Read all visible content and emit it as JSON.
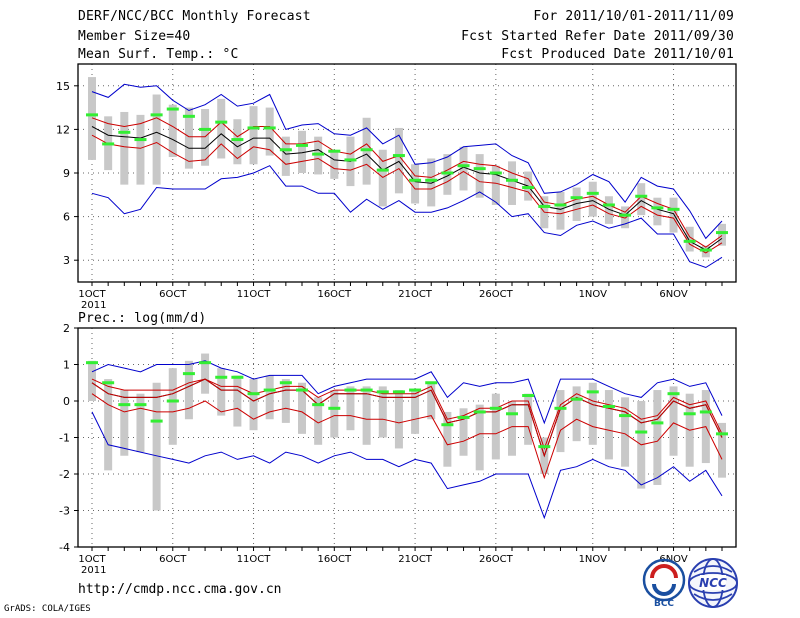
{
  "header": {
    "title": "DERF/NCC/BCC Monthly Forecast",
    "member_size": "Member Size=40",
    "variable": "Mean Surf. Temp.: °C",
    "period": "For 2011/10/01-2011/11/09",
    "started": "Fcst Started Refer Date 2011/09/30",
    "produced": "Fcst Produced Date 2011/10/01"
  },
  "footer": {
    "url": "http://cmdp.ncc.cma.gov.cn",
    "grads": "GrADS: COLA/IGES"
  },
  "logos": {
    "bcc": "BCC",
    "ncc": "NCC"
  },
  "colors": {
    "box": "#c8c8c8",
    "obs": "#33ee33",
    "outer": "#0000cc",
    "inner": "#cc0000",
    "mean": "#000000",
    "grid": "#666666"
  },
  "chart_data": [
    {
      "type": "line",
      "title": "Mean Surf. Temp.: °C",
      "ylim": [
        1.5,
        16.5
      ],
      "yticks": [
        3,
        6,
        9,
        12,
        15
      ],
      "x": [
        1,
        2,
        3,
        4,
        5,
        6,
        7,
        8,
        9,
        10,
        11,
        12,
        13,
        14,
        15,
        16,
        17,
        18,
        19,
        20,
        21,
        22,
        23,
        24,
        25,
        26,
        27,
        28,
        29,
        30,
        31,
        32,
        33,
        34,
        35,
        36,
        37,
        38,
        39,
        40
      ],
      "xticks": [
        {
          "x": 1,
          "label": "1OCT"
        },
        {
          "x": 6,
          "label": "6OCT"
        },
        {
          "x": 11,
          "label": "11OCT"
        },
        {
          "x": 16,
          "label": "16OCT"
        },
        {
          "x": 21,
          "label": "21OCT"
        },
        {
          "x": 26,
          "label": "26OCT"
        },
        {
          "x": 32,
          "label": "1NOV"
        },
        {
          "x": 37,
          "label": "6NOV"
        }
      ],
      "year_label": "2011",
      "series": [
        {
          "name": "max",
          "color": "#0000cc",
          "values": [
            14.6,
            14.2,
            15.1,
            14.9,
            15.0,
            14.0,
            13.3,
            13.7,
            14.4,
            13.6,
            13.8,
            14.4,
            12.0,
            12.3,
            12.4,
            11.7,
            11.6,
            12.1,
            11.0,
            11.6,
            9.6,
            9.7,
            10.1,
            10.8,
            10.9,
            11.0,
            10.2,
            9.7,
            7.6,
            7.7,
            8.2,
            8.9,
            8.4,
            7.0,
            8.7,
            8.1,
            7.9,
            6.4,
            4.5,
            5.7
          ]
        },
        {
          "name": "p75",
          "color": "#cc0000",
          "values": [
            12.8,
            12.4,
            12.2,
            12.4,
            12.8,
            12.2,
            11.5,
            11.5,
            12.5,
            11.5,
            12.2,
            12.2,
            11.0,
            11.0,
            11.2,
            10.5,
            10.3,
            11.0,
            9.8,
            10.2,
            8.8,
            8.7,
            9.2,
            9.8,
            9.6,
            9.5,
            9.0,
            8.6,
            7.0,
            6.8,
            7.2,
            7.4,
            6.8,
            6.3,
            7.4,
            6.9,
            6.5,
            4.6,
            3.9,
            4.7
          ]
        },
        {
          "name": "mean",
          "color": "#000000",
          "values": [
            12.2,
            11.6,
            11.5,
            11.4,
            11.8,
            11.3,
            10.7,
            10.7,
            11.7,
            10.8,
            11.4,
            11.4,
            10.3,
            10.4,
            10.6,
            9.9,
            9.8,
            10.3,
            9.2,
            9.8,
            8.4,
            8.3,
            8.8,
            9.4,
            9.0,
            8.9,
            8.5,
            8.1,
            6.7,
            6.5,
            6.9,
            7.1,
            6.5,
            6.1,
            7.1,
            6.5,
            6.2,
            4.3,
            3.7,
            4.5
          ]
        },
        {
          "name": "p25",
          "color": "#cc0000",
          "values": [
            11.6,
            11.0,
            10.8,
            10.7,
            11.1,
            10.4,
            9.8,
            9.9,
            11.0,
            10.0,
            10.8,
            10.6,
            9.6,
            9.8,
            10.0,
            9.3,
            9.2,
            9.6,
            8.7,
            9.3,
            7.9,
            7.9,
            8.4,
            9.1,
            8.4,
            8.3,
            8.0,
            7.7,
            6.3,
            6.2,
            6.5,
            6.8,
            6.2,
            5.9,
            6.7,
            6.1,
            5.9,
            4.1,
            3.5,
            4.2
          ]
        },
        {
          "name": "min",
          "color": "#0000cc",
          "values": [
            7.6,
            7.3,
            6.2,
            6.5,
            8.0,
            7.9,
            7.9,
            7.9,
            8.6,
            8.7,
            9.0,
            9.5,
            8.1,
            8.1,
            7.6,
            7.6,
            6.3,
            7.2,
            6.5,
            7.1,
            6.3,
            6.3,
            6.6,
            7.1,
            7.7,
            7.0,
            6.0,
            6.2,
            4.9,
            4.7,
            5.4,
            5.7,
            5.2,
            5.5,
            5.9,
            4.8,
            4.8,
            2.9,
            2.5,
            3.2
          ]
        }
      ],
      "boxes": {
        "low": [
          9.9,
          9.2,
          8.2,
          8.2,
          8.2,
          10.1,
          9.3,
          9.5,
          10.0,
          9.6,
          9.6,
          10.2,
          8.8,
          9.0,
          8.9,
          8.6,
          8.1,
          8.2,
          6.7,
          7.6,
          6.9,
          6.7,
          7.5,
          7.8,
          7.3,
          6.8,
          6.8,
          7.1,
          5.2,
          5.1,
          5.7,
          6.0,
          5.5,
          5.2,
          6.1,
          5.4,
          4.9,
          3.6,
          3.2,
          4.0
        ],
        "high": [
          15.6,
          12.9,
          13.2,
          13.0,
          14.4,
          13.7,
          13.5,
          13.4,
          14.1,
          12.7,
          13.6,
          13.5,
          11.5,
          11.9,
          11.5,
          10.5,
          11.5,
          12.8,
          10.6,
          12.1,
          9.6,
          10.0,
          10.3,
          10.8,
          10.3,
          9.5,
          9.8,
          9.1,
          7.4,
          7.7,
          8.0,
          8.4,
          7.4,
          6.7,
          8.3,
          7.3,
          7.3,
          5.3,
          4.0,
          5.5
        ]
      },
      "observed": [
        13.0,
        11.0,
        11.8,
        11.3,
        13.0,
        13.4,
        12.9,
        12.0,
        12.5,
        11.3,
        12.1,
        12.1,
        10.6,
        10.9,
        10.3,
        10.5,
        9.9,
        10.6,
        9.2,
        10.2,
        8.5,
        8.5,
        9.0,
        9.5,
        9.3,
        9.0,
        8.5,
        8.0,
        6.7,
        6.8,
        7.3,
        7.6,
        6.8,
        6.1,
        7.4,
        6.6,
        6.5,
        4.3,
        3.7,
        4.9
      ]
    },
    {
      "type": "line",
      "title": "Prec.: log(mm/d)",
      "ylim": [
        -4,
        2
      ],
      "yticks": [
        -4,
        -3,
        -2,
        -1,
        0,
        1,
        2
      ],
      "x": [
        1,
        2,
        3,
        4,
        5,
        6,
        7,
        8,
        9,
        10,
        11,
        12,
        13,
        14,
        15,
        16,
        17,
        18,
        19,
        20,
        21,
        22,
        23,
        24,
        25,
        26,
        27,
        28,
        29,
        30,
        31,
        32,
        33,
        34,
        35,
        36,
        37,
        38,
        39,
        40
      ],
      "xticks": [
        {
          "x": 1,
          "label": "1OCT"
        },
        {
          "x": 6,
          "label": "6OCT"
        },
        {
          "x": 11,
          "label": "11OCT"
        },
        {
          "x": 16,
          "label": "16OCT"
        },
        {
          "x": 21,
          "label": "21OCT"
        },
        {
          "x": 26,
          "label": "26OCT"
        },
        {
          "x": 32,
          "label": "1NOV"
        },
        {
          "x": 37,
          "label": "6NOV"
        }
      ],
      "year_label": "2011",
      "series": [
        {
          "name": "max",
          "color": "#0000cc",
          "values": [
            0.8,
            1.0,
            0.9,
            0.8,
            1.0,
            1.0,
            1.0,
            1.1,
            0.9,
            0.8,
            0.6,
            0.7,
            0.7,
            0.7,
            0.2,
            0.4,
            0.5,
            0.6,
            0.6,
            0.6,
            0.6,
            0.8,
            0.1,
            0.5,
            0.4,
            0.5,
            0.5,
            0.6,
            -0.6,
            0.6,
            0.6,
            0.6,
            0.4,
            0.2,
            0.1,
            0.5,
            0.6,
            0.4,
            0.5,
            -0.4
          ]
        },
        {
          "name": "p75",
          "color": "#cc0000",
          "values": [
            0.6,
            0.4,
            0.3,
            0.3,
            0.3,
            0.3,
            0.5,
            0.6,
            0.4,
            0.4,
            0.2,
            0.3,
            0.4,
            0.4,
            0.1,
            0.3,
            0.3,
            0.3,
            0.2,
            0.2,
            0.2,
            0.4,
            -0.5,
            -0.4,
            -0.2,
            -0.2,
            0.0,
            0.0,
            -1.3,
            -0.1,
            0.2,
            0.0,
            -0.1,
            -0.2,
            -0.5,
            -0.4,
            0.1,
            -0.1,
            0.0,
            -0.9
          ]
        },
        {
          "name": "mean",
          "color": "#000000",
          "values": [
            0.5,
            0.2,
            0.1,
            0.1,
            0.1,
            0.2,
            0.4,
            0.6,
            0.3,
            0.3,
            0.0,
            0.2,
            0.3,
            0.3,
            -0.1,
            0.2,
            0.2,
            0.2,
            0.1,
            0.1,
            0.1,
            0.3,
            -0.6,
            -0.5,
            -0.3,
            -0.3,
            -0.1,
            -0.1,
            -1.5,
            -0.2,
            0.1,
            -0.1,
            -0.2,
            -0.3,
            -0.6,
            -0.5,
            0.0,
            -0.2,
            -0.1,
            -1.0
          ]
        },
        {
          "name": "p25",
          "color": "#cc0000",
          "values": [
            0.2,
            -0.1,
            -0.3,
            -0.2,
            -0.3,
            -0.3,
            -0.2,
            0.0,
            -0.3,
            -0.2,
            -0.5,
            -0.3,
            -0.2,
            -0.3,
            -0.6,
            -0.4,
            -0.4,
            -0.5,
            -0.5,
            -0.6,
            -0.5,
            -0.4,
            -1.2,
            -1.1,
            -0.9,
            -0.9,
            -0.7,
            -0.7,
            -2.1,
            -0.8,
            -0.5,
            -0.7,
            -0.8,
            -0.9,
            -1.2,
            -1.1,
            -0.6,
            -0.8,
            -0.7,
            -1.6
          ]
        },
        {
          "name": "min",
          "color": "#0000cc",
          "values": [
            -0.3,
            -1.2,
            -1.3,
            -1.4,
            -1.5,
            -1.6,
            -1.7,
            -1.5,
            -1.4,
            -1.6,
            -1.5,
            -1.7,
            -1.4,
            -1.5,
            -1.7,
            -1.5,
            -1.4,
            -1.6,
            -1.6,
            -1.8,
            -1.6,
            -1.7,
            -2.4,
            -2.3,
            -2.2,
            -2.0,
            -2.0,
            -2.0,
            -3.2,
            -1.9,
            -1.8,
            -1.6,
            -1.8,
            -1.9,
            -2.3,
            -2.1,
            -1.8,
            -2.2,
            -1.9,
            -2.6
          ]
        },
        {
          "name": "mean2",
          "color": "#cc0000",
          "values": [
            0.5,
            0.2,
            0.1,
            0.1,
            0.1,
            0.2,
            0.4,
            0.6,
            0.3,
            0.3,
            0.0,
            0.2,
            0.3,
            0.3,
            -0.1,
            0.2,
            0.2,
            0.2,
            0.1,
            0.1,
            0.1,
            0.3,
            -0.6,
            -0.5,
            -0.3,
            -0.3,
            -0.1,
            -0.1,
            -1.5,
            -0.2,
            0.1,
            -0.1,
            -0.2,
            -0.3,
            -0.6,
            -0.5,
            0.0,
            -0.2,
            -0.1,
            -1.0
          ]
        }
      ],
      "boxes": {
        "low": [
          0.0,
          -1.9,
          -1.5,
          -1.4,
          -3.0,
          -1.2,
          -0.5,
          0.2,
          -0.4,
          -0.7,
          -0.8,
          -0.5,
          -0.6,
          -0.9,
          -1.2,
          -1.0,
          -0.8,
          -1.2,
          -1.0,
          -1.3,
          -0.9,
          -0.5,
          -1.8,
          -1.5,
          -1.9,
          -1.6,
          -1.5,
          -1.2,
          -2.0,
          -1.4,
          -1.1,
          -1.2,
          -1.6,
          -1.8,
          -2.4,
          -2.3,
          -1.5,
          -1.8,
          -1.7,
          -2.1
        ],
        "high": [
          1.1,
          0.6,
          0.3,
          0.2,
          0.5,
          0.9,
          1.1,
          1.3,
          0.9,
          0.7,
          0.6,
          0.7,
          0.6,
          0.5,
          0.1,
          0.3,
          0.4,
          0.4,
          0.4,
          0.3,
          0.3,
          0.5,
          -0.3,
          -0.2,
          -0.1,
          0.2,
          0.0,
          0.2,
          -1.0,
          0.3,
          0.4,
          0.5,
          0.3,
          0.1,
          0.0,
          0.3,
          0.4,
          0.2,
          0.3,
          -0.6
        ]
      },
      "observed": [
        1.05,
        0.5,
        -0.1,
        -0.1,
        -0.55,
        0.0,
        0.75,
        1.05,
        0.65,
        0.65,
        0.2,
        0.3,
        0.5,
        0.3,
        -0.1,
        -0.2,
        0.3,
        0.3,
        0.25,
        0.25,
        0.3,
        0.5,
        -0.65,
        -0.45,
        -0.3,
        -0.2,
        -0.35,
        0.15,
        -1.25,
        -0.2,
        0.05,
        0.25,
        -0.15,
        -0.4,
        -0.85,
        -0.6,
        0.2,
        -0.35,
        -0.3,
        -0.9
      ]
    }
  ]
}
